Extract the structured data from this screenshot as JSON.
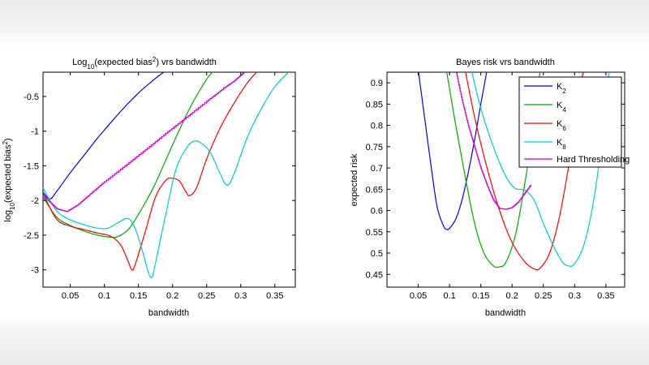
{
  "chart_data": [
    {
      "type": "line",
      "title_parts": [
        "Log",
        "10",
        "(expected bias",
        "2",
        ") vrs bandwidth"
      ],
      "xlabel": "bandwidth",
      "ylabel_parts": [
        "log",
        "10",
        "(expected bias",
        "2",
        ")"
      ],
      "xlim": [
        0.01,
        0.38
      ],
      "ylim": [
        -3.25,
        -0.15
      ],
      "xticks": [
        0.05,
        0.1,
        0.15,
        0.2,
        0.25,
        0.3,
        0.35
      ],
      "xtick_labels": [
        "0.05",
        "0.1",
        "0.15",
        "0.2",
        "0.25",
        "0.3",
        "0.35"
      ],
      "yticks": [
        -3,
        -2.5,
        -2,
        -1.5,
        -1,
        -0.5
      ],
      "ytick_labels": [
        "-3",
        "-2.5",
        "-2",
        "-1.5",
        "-1",
        "-0.5"
      ],
      "grid": false,
      "series": [
        {
          "color": "#0000ff",
          "step": false,
          "points": [
            [
              0.01,
              -1.88
            ],
            [
              0.02,
              -1.98
            ],
            [
              0.03,
              -1.87
            ],
            [
              0.05,
              -1.6
            ],
            [
              0.07,
              -1.35
            ],
            [
              0.09,
              -1.1
            ],
            [
              0.11,
              -0.87
            ],
            [
              0.13,
              -0.65
            ],
            [
              0.15,
              -0.45
            ],
            [
              0.165,
              -0.32
            ],
            [
              0.18,
              -0.2
            ],
            [
              0.19,
              -0.13
            ]
          ]
        },
        {
          "color": "#00aa00",
          "step": false,
          "points": [
            [
              0.01,
              -1.95
            ],
            [
              0.03,
              -2.24
            ],
            [
              0.05,
              -2.36
            ],
            [
              0.07,
              -2.44
            ],
            [
              0.09,
              -2.5
            ],
            [
              0.11,
              -2.53
            ],
            [
              0.12,
              -2.52
            ],
            [
              0.135,
              -2.42
            ],
            [
              0.15,
              -2.2
            ],
            [
              0.17,
              -1.85
            ],
            [
              0.19,
              -1.42
            ],
            [
              0.21,
              -0.98
            ],
            [
              0.23,
              -0.58
            ],
            [
              0.25,
              -0.25
            ],
            [
              0.26,
              -0.13
            ]
          ]
        },
        {
          "color": "#ff0000",
          "step": false,
          "points": [
            [
              0.01,
              -1.9
            ],
            [
              0.03,
              -2.27
            ],
            [
              0.05,
              -2.37
            ],
            [
              0.07,
              -2.42
            ],
            [
              0.09,
              -2.47
            ],
            [
              0.105,
              -2.5
            ],
            [
              0.115,
              -2.55
            ],
            [
              0.125,
              -2.66
            ],
            [
              0.135,
              -2.88
            ],
            [
              0.14,
              -3.0
            ],
            [
              0.145,
              -2.93
            ],
            [
              0.16,
              -2.45
            ],
            [
              0.175,
              -1.95
            ],
            [
              0.19,
              -1.71
            ],
            [
              0.2,
              -1.68
            ],
            [
              0.21,
              -1.72
            ],
            [
              0.22,
              -1.88
            ],
            [
              0.225,
              -1.93
            ],
            [
              0.235,
              -1.82
            ],
            [
              0.25,
              -1.4
            ],
            [
              0.27,
              -0.95
            ],
            [
              0.29,
              -0.6
            ],
            [
              0.31,
              -0.3
            ],
            [
              0.325,
              -0.13
            ]
          ]
        },
        {
          "color": "#00cccc",
          "step": false,
          "points": [
            [
              0.01,
              -1.82
            ],
            [
              0.03,
              -2.15
            ],
            [
              0.05,
              -2.28
            ],
            [
              0.07,
              -2.35
            ],
            [
              0.09,
              -2.4
            ],
            [
              0.105,
              -2.4
            ],
            [
              0.12,
              -2.32
            ],
            [
              0.135,
              -2.26
            ],
            [
              0.145,
              -2.4
            ],
            [
              0.155,
              -2.7
            ],
            [
              0.165,
              -3.05
            ],
            [
              0.17,
              -3.1
            ],
            [
              0.175,
              -2.9
            ],
            [
              0.19,
              -2.2
            ],
            [
              0.205,
              -1.55
            ],
            [
              0.22,
              -1.25
            ],
            [
              0.23,
              -1.15
            ],
            [
              0.24,
              -1.16
            ],
            [
              0.255,
              -1.3
            ],
            [
              0.27,
              -1.62
            ],
            [
              0.28,
              -1.78
            ],
            [
              0.29,
              -1.62
            ],
            [
              0.31,
              -1.08
            ],
            [
              0.33,
              -0.68
            ],
            [
              0.35,
              -0.36
            ],
            [
              0.37,
              -0.15
            ]
          ]
        },
        {
          "color": "#cc00cc",
          "step": true,
          "points": [
            [
              0.01,
              -1.93
            ],
            [
              0.03,
              -2.12
            ],
            [
              0.045,
              -2.16
            ],
            [
              0.06,
              -2.07
            ],
            [
              0.08,
              -1.9
            ],
            [
              0.1,
              -1.73
            ],
            [
              0.13,
              -1.5
            ],
            [
              0.16,
              -1.27
            ],
            [
              0.19,
              -1.03
            ],
            [
              0.22,
              -0.8
            ],
            [
              0.25,
              -0.57
            ],
            [
              0.275,
              -0.38
            ],
            [
              0.29,
              -0.28
            ],
            [
              0.305,
              -0.15
            ]
          ]
        }
      ]
    },
    {
      "type": "line",
      "title_parts": [
        "Bayes risk vrs bandwidth"
      ],
      "xlabel": "bandwidth",
      "ylabel_parts": [
        "expected risk"
      ],
      "xlim": [
        0.0,
        0.38
      ],
      "ylim": [
        0.42,
        0.925
      ],
      "xticks": [
        0.05,
        0.1,
        0.15,
        0.2,
        0.25,
        0.3,
        0.35
      ],
      "xtick_labels": [
        "0.05",
        "0.1",
        "0.15",
        "0.2",
        "0.25",
        "0.3",
        "0.35"
      ],
      "yticks": [
        0.45,
        0.5,
        0.55,
        0.6,
        0.65,
        0.7,
        0.75,
        0.8,
        0.85,
        0.9
      ],
      "ytick_labels": [
        "0.45",
        "0.5",
        "0.55",
        "0.6",
        "0.65",
        "0.7",
        "0.75",
        "0.8",
        "0.85",
        "0.9"
      ],
      "grid": false,
      "legend_position": "top-right",
      "series": [
        {
          "name_parts": [
            "K",
            "2"
          ],
          "color": "#0000ff",
          "step": false,
          "points": [
            [
              0.05,
              0.93
            ],
            [
              0.06,
              0.82
            ],
            [
              0.07,
              0.71
            ],
            [
              0.08,
              0.61
            ],
            [
              0.09,
              0.565
            ],
            [
              0.095,
              0.556
            ],
            [
              0.1,
              0.558
            ],
            [
              0.11,
              0.58
            ],
            [
              0.12,
              0.625
            ],
            [
              0.13,
              0.69
            ],
            [
              0.14,
              0.765
            ],
            [
              0.15,
              0.85
            ],
            [
              0.16,
              0.93
            ]
          ]
        },
        {
          "name_parts": [
            "K",
            "4"
          ],
          "color": "#00aa00",
          "step": false,
          "points": [
            [
              0.095,
              0.93
            ],
            [
              0.11,
              0.8
            ],
            [
              0.125,
              0.68
            ],
            [
              0.14,
              0.57
            ],
            [
              0.155,
              0.5
            ],
            [
              0.17,
              0.47
            ],
            [
              0.18,
              0.468
            ],
            [
              0.19,
              0.478
            ],
            [
              0.205,
              0.54
            ],
            [
              0.22,
              0.66
            ],
            [
              0.235,
              0.81
            ],
            [
              0.245,
              0.93
            ]
          ]
        },
        {
          "name_parts": [
            "K",
            "6"
          ],
          "color": "#ff0000",
          "step": false,
          "points": [
            [
              0.125,
              0.93
            ],
            [
              0.14,
              0.82
            ],
            [
              0.16,
              0.7
            ],
            [
              0.18,
              0.6
            ],
            [
              0.2,
              0.525
            ],
            [
              0.22,
              0.48
            ],
            [
              0.235,
              0.463
            ],
            [
              0.245,
              0.465
            ],
            [
              0.26,
              0.5
            ],
            [
              0.275,
              0.58
            ],
            [
              0.29,
              0.7
            ],
            [
              0.3,
              0.8
            ],
            [
              0.31,
              0.9
            ],
            [
              0.315,
              0.93
            ]
          ]
        },
        {
          "name_parts": [
            "K",
            "8"
          ],
          "color": "#00cccc",
          "step": false,
          "points": [
            [
              0.135,
              0.93
            ],
            [
              0.15,
              0.84
            ],
            [
              0.17,
              0.75
            ],
            [
              0.19,
              0.68
            ],
            [
              0.205,
              0.652
            ],
            [
              0.22,
              0.648
            ],
            [
              0.235,
              0.625
            ],
            [
              0.25,
              0.57
            ],
            [
              0.265,
              0.52
            ],
            [
              0.28,
              0.48
            ],
            [
              0.29,
              0.47
            ],
            [
              0.3,
              0.475
            ],
            [
              0.315,
              0.52
            ],
            [
              0.33,
              0.62
            ],
            [
              0.345,
              0.78
            ],
            [
              0.355,
              0.93
            ]
          ]
        },
        {
          "name_parts": [
            "Hard Thresholding"
          ],
          "color": "#cc00cc",
          "step": true,
          "points": [
            [
              0.11,
              0.93
            ],
            [
              0.12,
              0.86
            ],
            [
              0.13,
              0.8
            ],
            [
              0.14,
              0.75
            ],
            [
              0.15,
              0.7
            ],
            [
              0.16,
              0.66
            ],
            [
              0.17,
              0.625
            ],
            [
              0.18,
              0.605
            ],
            [
              0.19,
              0.603
            ],
            [
              0.2,
              0.607
            ],
            [
              0.21,
              0.62
            ],
            [
              0.22,
              0.64
            ],
            [
              0.23,
              0.66
            ]
          ]
        }
      ]
    }
  ]
}
